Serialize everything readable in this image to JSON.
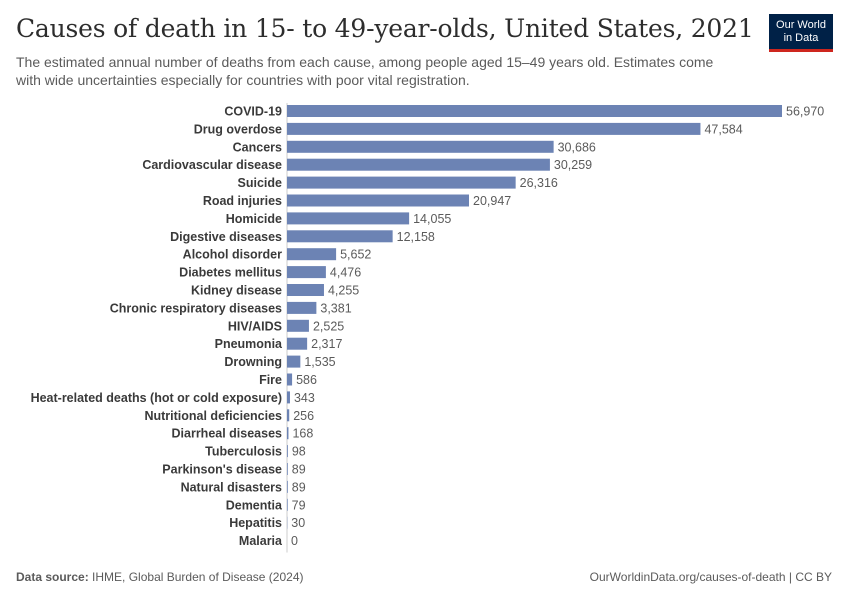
{
  "header": {
    "title": "Causes of death in 15- to 49-year-olds, United States, 2021",
    "subtitle": "The estimated annual number of deaths from each cause, among people aged 15–49 years old. Estimates come with wide uncertainties especially for countries with poor vital registration."
  },
  "logo": {
    "line1": "Our World",
    "line2": "in Data"
  },
  "footer": {
    "source_label": "Data source:",
    "source_text": "IHME, Global Burden of Disease (2024)",
    "url": "OurWorldinData.org/causes-of-death | CC BY"
  },
  "colors": {
    "bar": "#6c83b4",
    "label": "#3a3a3a",
    "value": "#5b5b5b",
    "axis": "#cccccc"
  },
  "chart_data": {
    "type": "bar",
    "orientation": "horizontal",
    "title": "Causes of death in 15- to 49-year-olds, United States, 2021",
    "categories": [
      "COVID-19",
      "Drug overdose",
      "Cancers",
      "Cardiovascular disease",
      "Suicide",
      "Road injuries",
      "Homicide",
      "Digestive diseases",
      "Alcohol disorder",
      "Diabetes mellitus",
      "Kidney disease",
      "Chronic respiratory diseases",
      "HIV/AIDS",
      "Pneumonia",
      "Drowning",
      "Fire",
      "Heat-related deaths (hot or cold exposure)",
      "Nutritional deficiencies",
      "Diarrheal diseases",
      "Tuberculosis",
      "Parkinson's disease",
      "Natural disasters",
      "Dementia",
      "Hepatitis",
      "Malaria"
    ],
    "values": [
      56970,
      47584,
      30686,
      30259,
      26316,
      20947,
      14055,
      12158,
      5652,
      4476,
      4255,
      3381,
      2525,
      2317,
      1535,
      586,
      343,
      256,
      168,
      98,
      89,
      89,
      79,
      30,
      0
    ],
    "value_labels": [
      "56,970",
      "47,584",
      "30,686",
      "30,259",
      "26,316",
      "20,947",
      "14,055",
      "12,158",
      "5,652",
      "4,476",
      "4,255",
      "3,381",
      "2,525",
      "2,317",
      "1,535",
      "586",
      "343",
      "256",
      "168",
      "98",
      "89",
      "89",
      "79",
      "30",
      "0"
    ],
    "xlim": [
      0,
      56970
    ]
  }
}
